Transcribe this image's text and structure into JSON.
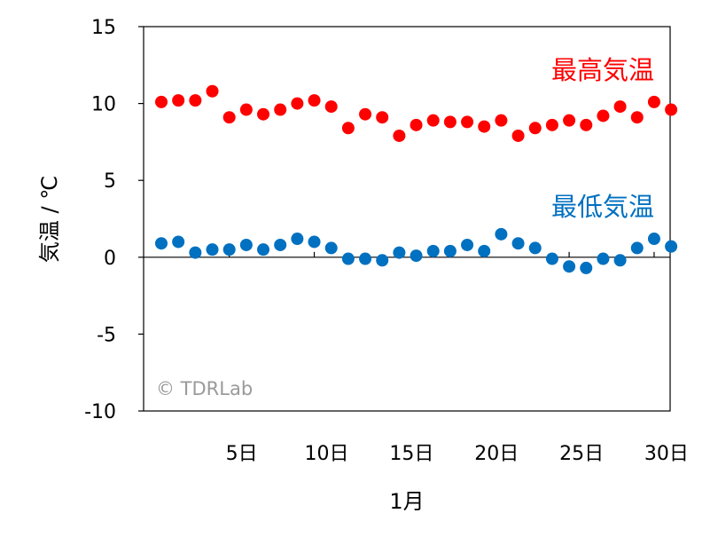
{
  "chart_data": {
    "type": "scatter",
    "xlabel": "1月",
    "ylabel": "気温 / ℃",
    "ylim": [
      -10,
      15
    ],
    "y_ticks": [
      15,
      10,
      5,
      0,
      -5,
      -10
    ],
    "y_tick_labels": [
      "15",
      "10",
      "5",
      "0",
      "-5",
      "-10"
    ],
    "xlim": [
      0,
      31
    ],
    "x_ticks": [
      5,
      10,
      15,
      20,
      25,
      30
    ],
    "x_tick_labels": [
      "5日",
      "10日",
      "15日",
      "20日",
      "25日",
      "30日"
    ],
    "x": [
      1,
      2,
      3,
      4,
      5,
      6,
      7,
      8,
      9,
      10,
      11,
      12,
      13,
      14,
      15,
      16,
      17,
      18,
      19,
      20,
      21,
      22,
      23,
      24,
      25,
      26,
      27,
      28,
      29,
      30,
      31
    ],
    "series": [
      {
        "name": "最高気温",
        "color": "#ff0000",
        "values": [
          10.1,
          10.2,
          10.2,
          10.8,
          9.1,
          9.6,
          9.3,
          9.6,
          10.0,
          10.2,
          9.8,
          8.4,
          9.3,
          9.1,
          7.9,
          8.6,
          8.9,
          8.8,
          8.8,
          8.5,
          8.9,
          7.9,
          8.4,
          8.6,
          8.9,
          8.6,
          9.2,
          9.8,
          9.1,
          10.1,
          9.6
        ]
      },
      {
        "name": "最低気温",
        "color": "#0070c0",
        "values": [
          0.9,
          1.0,
          0.3,
          0.5,
          0.5,
          0.8,
          0.5,
          0.8,
          1.2,
          1.0,
          0.6,
          -0.1,
          -0.1,
          -0.2,
          0.3,
          0.1,
          0.4,
          0.4,
          0.8,
          0.4,
          1.5,
          0.9,
          0.6,
          -0.1,
          -0.6,
          -0.7,
          -0.1,
          -0.2,
          0.6,
          1.2,
          0.7
        ]
      }
    ],
    "watermark": "© TDRLab"
  }
}
